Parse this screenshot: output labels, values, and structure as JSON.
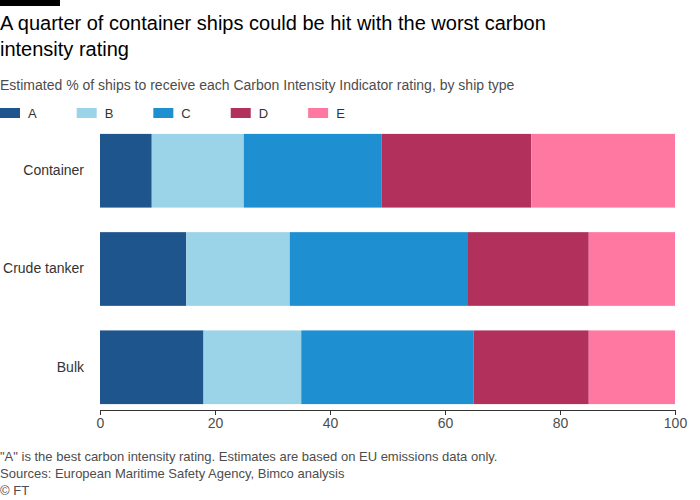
{
  "chart_data": {
    "type": "bar",
    "orientation": "horizontal",
    "stacked": true,
    "title": "A quarter of container ships could be hit with the worst carbon intensity rating",
    "subtitle": "Estimated % of ships to receive each Carbon Intensity Indicator rating, by ship type",
    "footnote": "\"A\" is the best carbon intensity rating. Estimates are based on EU emissions data only.",
    "source": "Sources: European Maritime Safety Agency, Bimco analysis",
    "credit": "© FT",
    "categories": [
      "Container",
      "Crude tanker",
      "Bulk"
    ],
    "series": [
      {
        "name": "A",
        "color": "#1e558c",
        "values": [
          9,
          15,
          18
        ]
      },
      {
        "name": "B",
        "color": "#9bd3e8",
        "values": [
          16,
          18,
          17
        ]
      },
      {
        "name": "C",
        "color": "#1e8fd0",
        "values": [
          24,
          31,
          30
        ]
      },
      {
        "name": "D",
        "color": "#b1315c",
        "values": [
          26,
          21,
          20
        ]
      },
      {
        "name": "E",
        "color": "#ff78a2",
        "values": [
          25,
          15,
          15
        ]
      }
    ],
    "xlim": [
      0,
      100
    ],
    "xticks": [
      0,
      20,
      40,
      60,
      80,
      100
    ],
    "grid": false,
    "legend": "top-left"
  }
}
